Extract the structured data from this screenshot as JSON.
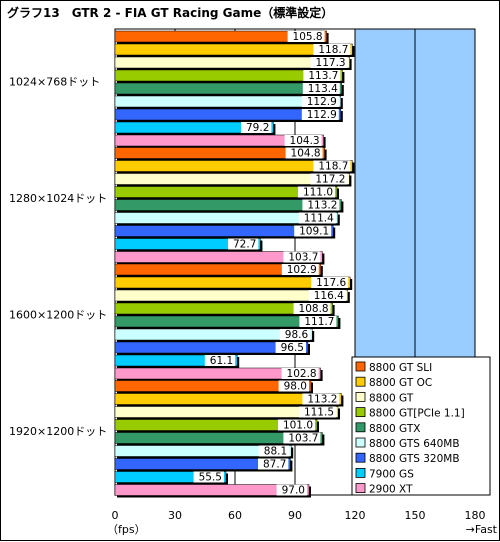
{
  "chart_data": {
    "type": "bar",
    "orientation": "horizontal",
    "title": "グラフ13　GTR 2 - FIA GT Racing Game（標準設定）",
    "xlabel_left": "（fps）",
    "xlabel_right": "→Fast",
    "xlim": [
      0,
      180
    ],
    "xticks": [
      0,
      30,
      60,
      90,
      120,
      150,
      180
    ],
    "grid": true,
    "legend_position": "bottom-right",
    "categories": [
      "1024×768ドット",
      "1280×1024ドット",
      "1600×1200ドット",
      "1920×1200ドット"
    ],
    "series": [
      {
        "name": "8800 GT SLI",
        "color": "#ff6600",
        "values": [
          105.8,
          104.8,
          102.9,
          98.0
        ]
      },
      {
        "name": "8800 GT OC",
        "color": "#ffcc00",
        "values": [
          118.7,
          118.7,
          117.6,
          113.2
        ]
      },
      {
        "name": "8800 GT",
        "color": "#ffffcc",
        "values": [
          117.3,
          117.2,
          116.4,
          111.5
        ]
      },
      {
        "name": "8800 GT[PCIe 1.1]",
        "color": "#99cc00",
        "values": [
          113.7,
          111.0,
          108.8,
          101.0
        ]
      },
      {
        "name": "8800 GTX",
        "color": "#339966",
        "values": [
          113.4,
          113.2,
          111.7,
          103.7
        ]
      },
      {
        "name": "8800 GTS 640MB",
        "color": "#ccffff",
        "values": [
          112.9,
          111.4,
          98.6,
          88.1
        ]
      },
      {
        "name": "8800 GTS 320MB",
        "color": "#3366ff",
        "values": [
          112.9,
          109.1,
          96.5,
          87.7
        ]
      },
      {
        "name": "7900 GS",
        "color": "#00ccff",
        "values": [
          79.2,
          72.7,
          61.1,
          55.5
        ]
      },
      {
        "name": "2900 XT",
        "color": "#ff99cc",
        "values": [
          104.3,
          103.7,
          102.8,
          97.0
        ]
      }
    ]
  }
}
